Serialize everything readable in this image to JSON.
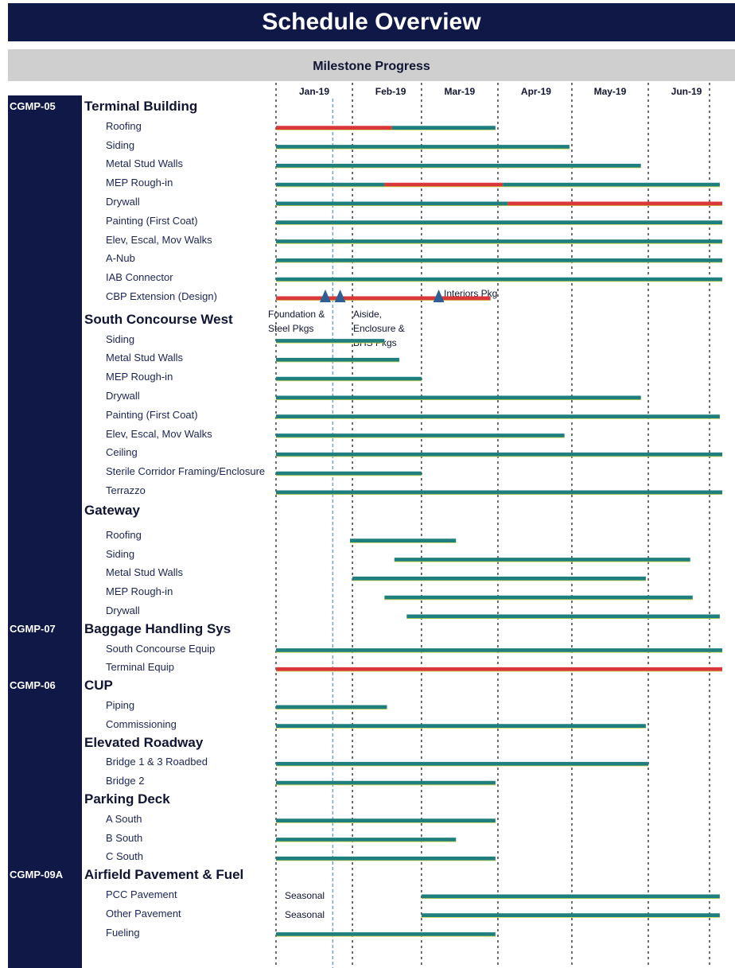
{
  "header": {
    "title": "Schedule Overview",
    "subtitle": "Milestone Progress"
  },
  "colors": {
    "navy": "#0f1846",
    "on_track": "#1f7f7e",
    "delayed": "#d9373a",
    "milestone": "#2d5f95",
    "gridline": "#222222",
    "data_date_line": "#4a8fd6"
  },
  "chart_data": {
    "type": "gantt",
    "x_axis": {
      "tick_labels": [
        "Jan-19",
        "Feb-19",
        "Mar-19",
        "Apr-19",
        "May-19",
        "Jun-19"
      ],
      "range": [
        "2019-01-01",
        "2019-07-01"
      ],
      "grid": "vertical dotted",
      "data_date": "2019-01-24"
    },
    "legend": "none",
    "groups": [
      {
        "code": "CGMP-05",
        "section": "Terminal Building",
        "tasks": [
          {
            "name": "Roofing",
            "segments": [
              {
                "start": "2019-01-01",
                "end": "2019-02-17",
                "status": "delayed"
              },
              {
                "start": "2019-02-17",
                "end": "2019-03-31",
                "status": "on_track"
              }
            ]
          },
          {
            "name": "Siding",
            "segments": [
              {
                "start": "2019-01-01",
                "end": "2019-04-30",
                "status": "on_track"
              }
            ]
          },
          {
            "name": "Metal Stud Walls",
            "segments": [
              {
                "start": "2019-01-01",
                "end": "2019-05-29",
                "status": "on_track"
              }
            ]
          },
          {
            "name": "MEP Rough-in",
            "segments": [
              {
                "start": "2019-01-01",
                "end": "2019-02-14",
                "status": "on_track"
              },
              {
                "start": "2019-02-14",
                "end": "2019-04-03",
                "status": "delayed"
              },
              {
                "start": "2019-04-03",
                "end": "2019-06-30",
                "status": "on_track"
              }
            ]
          },
          {
            "name": "Drywall",
            "segments": [
              {
                "start": "2019-01-01",
                "end": "2019-04-05",
                "status": "on_track"
              },
              {
                "start": "2019-04-05",
                "end": "2019-07-01",
                "status": "delayed"
              }
            ]
          },
          {
            "name": "Painting (First Coat)",
            "segments": [
              {
                "start": "2019-01-01",
                "end": "2019-07-01",
                "status": "on_track"
              }
            ]
          },
          {
            "name": "Elev, Escal, Mov Walks",
            "segments": [
              {
                "start": "2019-01-01",
                "end": "2019-07-01",
                "status": "on_track"
              }
            ]
          },
          {
            "name": "A-Nub",
            "segments": [
              {
                "start": "2019-01-01",
                "end": "2019-07-01",
                "status": "on_track"
              }
            ]
          },
          {
            "name": "IAB Connector",
            "segments": [
              {
                "start": "2019-01-01",
                "end": "2019-07-01",
                "status": "on_track"
              }
            ]
          },
          {
            "name": "CBP Extension (Design)",
            "segments": [
              {
                "start": "2019-01-01",
                "end": "2019-03-29",
                "status": "delayed"
              }
            ],
            "milestones": [
              {
                "date": "2019-01-21",
                "label": "Foundation & Steel Pkgs"
              },
              {
                "date": "2019-01-27",
                "label": "Aiside, Enclosure & BHS Pkgs"
              },
              {
                "date": "2019-03-08",
                "label": "Interiors Pkg"
              }
            ]
          }
        ]
      },
      {
        "code": "",
        "section": "South Concourse West",
        "tasks": [
          {
            "name": "Siding",
            "segments": [
              {
                "start": "2019-01-01",
                "end": "2019-02-14",
                "status": "on_track"
              }
            ]
          },
          {
            "name": "Metal Stud Walls",
            "segments": [
              {
                "start": "2019-01-01",
                "end": "2019-02-20",
                "status": "on_track"
              }
            ]
          },
          {
            "name": "MEP Rough-in",
            "segments": [
              {
                "start": "2019-01-01",
                "end": "2019-03-01",
                "status": "on_track"
              }
            ]
          },
          {
            "name": "Drywall",
            "segments": [
              {
                "start": "2019-01-01",
                "end": "2019-05-29",
                "status": "on_track"
              }
            ]
          },
          {
            "name": "Painting (First Coat)",
            "segments": [
              {
                "start": "2019-01-01",
                "end": "2019-06-30",
                "status": "on_track"
              }
            ]
          },
          {
            "name": "Elev, Escal, Mov Walks",
            "segments": [
              {
                "start": "2019-01-01",
                "end": "2019-04-28",
                "status": "on_track"
              }
            ]
          },
          {
            "name": "Ceiling",
            "segments": [
              {
                "start": "2019-01-01",
                "end": "2019-07-01",
                "status": "on_track"
              }
            ]
          },
          {
            "name": "Sterile Corridor Framing/Enclosure",
            "segments": [
              {
                "start": "2019-01-01",
                "end": "2019-03-01",
                "status": "on_track"
              }
            ]
          },
          {
            "name": "Terrazzo",
            "segments": [
              {
                "start": "2019-01-01",
                "end": "2019-07-01",
                "status": "on_track"
              }
            ]
          }
        ]
      },
      {
        "code": "",
        "section": "Gateway",
        "tasks": [
          {
            "name": "Roofing",
            "segments": [
              {
                "start": "2019-01-31",
                "end": "2019-03-15",
                "status": "on_track"
              }
            ]
          },
          {
            "name": "Siding",
            "segments": [
              {
                "start": "2019-02-18",
                "end": "2019-06-18",
                "status": "on_track"
              }
            ]
          },
          {
            "name": "Metal Stud Walls",
            "segments": [
              {
                "start": "2019-02-01",
                "end": "2019-05-31",
                "status": "on_track"
              }
            ]
          },
          {
            "name": "MEP Rough-in",
            "segments": [
              {
                "start": "2019-02-14",
                "end": "2019-06-19",
                "status": "on_track"
              }
            ]
          },
          {
            "name": "Drywall",
            "segments": [
              {
                "start": "2019-02-23",
                "end": "2019-06-30",
                "status": "on_track"
              }
            ]
          }
        ]
      },
      {
        "code": "CGMP-07",
        "section": "Baggage Handling Sys",
        "tasks": [
          {
            "name": "South Concourse Equip",
            "segments": [
              {
                "start": "2019-01-01",
                "end": "2019-07-01",
                "status": "on_track"
              }
            ]
          },
          {
            "name": "Terminal Equip",
            "segments": [
              {
                "start": "2019-01-01",
                "end": "2019-07-01",
                "status": "delayed"
              }
            ]
          }
        ]
      },
      {
        "code": "CGMP-06",
        "section": "CUP",
        "tasks": [
          {
            "name": "Piping",
            "segments": [
              {
                "start": "2019-01-01",
                "end": "2019-02-15",
                "status": "on_track"
              }
            ]
          },
          {
            "name": "Commissioning",
            "segments": [
              {
                "start": "2019-01-01",
                "end": "2019-05-31",
                "status": "on_track"
              }
            ]
          }
        ]
      },
      {
        "code": "",
        "section": "Elevated Roadway",
        "tasks": [
          {
            "name": "Bridge 1 & 3 Roadbed",
            "segments": [
              {
                "start": "2019-01-01",
                "end": "2019-06-01",
                "status": "on_track"
              }
            ]
          },
          {
            "name": "Bridge 2",
            "segments": [
              {
                "start": "2019-01-01",
                "end": "2019-03-31",
                "status": "on_track"
              }
            ]
          }
        ]
      },
      {
        "code": "",
        "section": "Parking Deck",
        "tasks": [
          {
            "name": "A South",
            "segments": [
              {
                "start": "2019-01-01",
                "end": "2019-03-31",
                "status": "on_track"
              }
            ]
          },
          {
            "name": "B South",
            "segments": [
              {
                "start": "2019-01-01",
                "end": "2019-03-15",
                "status": "on_track"
              }
            ]
          },
          {
            "name": "C South",
            "segments": [
              {
                "start": "2019-01-01",
                "end": "2019-03-31",
                "status": "on_track"
              }
            ]
          }
        ]
      },
      {
        "code": "CGMP-09A",
        "section": "Airfield Pavement & Fuel",
        "tasks": [
          {
            "name": "PCC Pavement",
            "note": "Seasonal",
            "segments": [
              {
                "start": "2019-03-01",
                "end": "2019-06-30",
                "status": "on_track"
              }
            ]
          },
          {
            "name": "Other Pavement",
            "note": "Seasonal",
            "segments": [
              {
                "start": "2019-03-01",
                "end": "2019-06-30",
                "status": "on_track"
              }
            ]
          },
          {
            "name": "Fueling",
            "segments": [
              {
                "start": "2019-01-01",
                "end": "2019-03-31",
                "status": "on_track"
              }
            ]
          }
        ]
      }
    ]
  }
}
